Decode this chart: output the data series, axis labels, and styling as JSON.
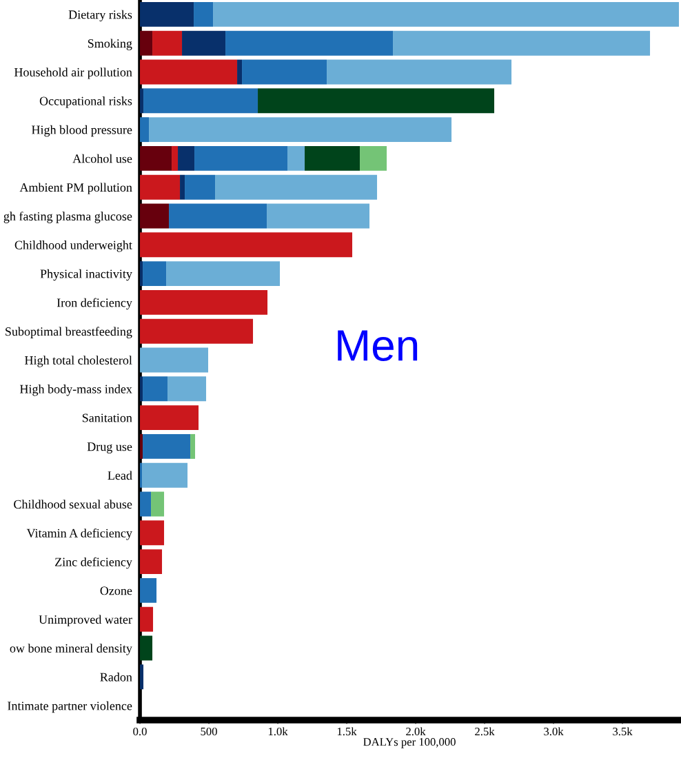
{
  "chart_data": {
    "type": "bar",
    "orientation": "horizontal",
    "stacked": true,
    "categories": [
      "Dietary risks",
      "Smoking",
      "Household air pollution",
      "Occupational risks",
      "High blood pressure",
      "Alcohol use",
      "Ambient PM pollution",
      "gh fasting plasma glucose",
      "Childhood underweight",
      "Physical inactivity",
      "Iron deficiency",
      "Suboptimal breastfeeding",
      "High total cholesterol",
      "High body-mass index",
      "Sanitation",
      "Drug use",
      "Lead",
      "Childhood sexual abuse",
      "Vitamin A deficiency",
      "Zinc deficiency",
      "Ozone",
      "Unimproved water",
      "ow bone mineral density",
      "Radon",
      "Intimate partner violence"
    ],
    "series": [
      {
        "color": "#67000d",
        "values": [
          null,
          90,
          null,
          null,
          null,
          230,
          null,
          210,
          null,
          null,
          null,
          null,
          null,
          null,
          null,
          20,
          null,
          null,
          null,
          null,
          null,
          null,
          null,
          null,
          null
        ]
      },
      {
        "color": "#cb181d",
        "values": [
          null,
          215,
          705,
          null,
          null,
          45,
          290,
          null,
          1540,
          null,
          925,
          820,
          null,
          null,
          425,
          null,
          null,
          null,
          175,
          160,
          null,
          95,
          null,
          null,
          null
        ]
      },
      {
        "color": "#08306b",
        "values": [
          390,
          315,
          35,
          25,
          null,
          120,
          35,
          null,
          null,
          20,
          null,
          null,
          null,
          20,
          null,
          null,
          null,
          null,
          null,
          null,
          null,
          null,
          null,
          25,
          null
        ]
      },
      {
        "color": "#2171b5",
        "values": [
          140,
          1215,
          615,
          830,
          65,
          675,
          220,
          710,
          null,
          170,
          null,
          null,
          null,
          180,
          null,
          345,
          15,
          80,
          null,
          null,
          120,
          null,
          null,
          null,
          null
        ]
      },
      {
        "color": "#6baed6",
        "values": [
          3380,
          1865,
          1340,
          null,
          2195,
          125,
          1175,
          745,
          null,
          825,
          null,
          null,
          495,
          280,
          null,
          null,
          330,
          null,
          null,
          null,
          null,
          null,
          null,
          null,
          null
        ]
      },
      {
        "color": "#00441b",
        "values": [
          null,
          null,
          null,
          1715,
          null,
          400,
          null,
          null,
          null,
          null,
          null,
          null,
          null,
          null,
          null,
          null,
          null,
          null,
          null,
          null,
          null,
          null,
          90,
          null,
          null
        ]
      },
      {
        "color": "#74c476",
        "values": [
          null,
          null,
          null,
          null,
          null,
          195,
          null,
          null,
          null,
          null,
          null,
          null,
          null,
          null,
          null,
          35,
          null,
          95,
          null,
          null,
          null,
          null,
          null,
          null,
          null
        ]
      }
    ],
    "xlabel": "DALYs per 100,000",
    "xlim": [
      0,
      3910
    ],
    "xticks": [
      {
        "value": 0,
        "label": "0.0"
      },
      500,
      {
        "value": 1000,
        "label": "1.0k"
      },
      {
        "value": 1500,
        "label": "1.5k"
      },
      {
        "value": 2000,
        "label": "2.0k"
      },
      {
        "value": 2500,
        "label": "2.5k"
      },
      {
        "value": 3000,
        "label": "3.0k"
      },
      {
        "value": 3500,
        "label": "3.5k"
      }
    ],
    "grid": false,
    "legend": false,
    "annotations": [
      "Men"
    ]
  }
}
